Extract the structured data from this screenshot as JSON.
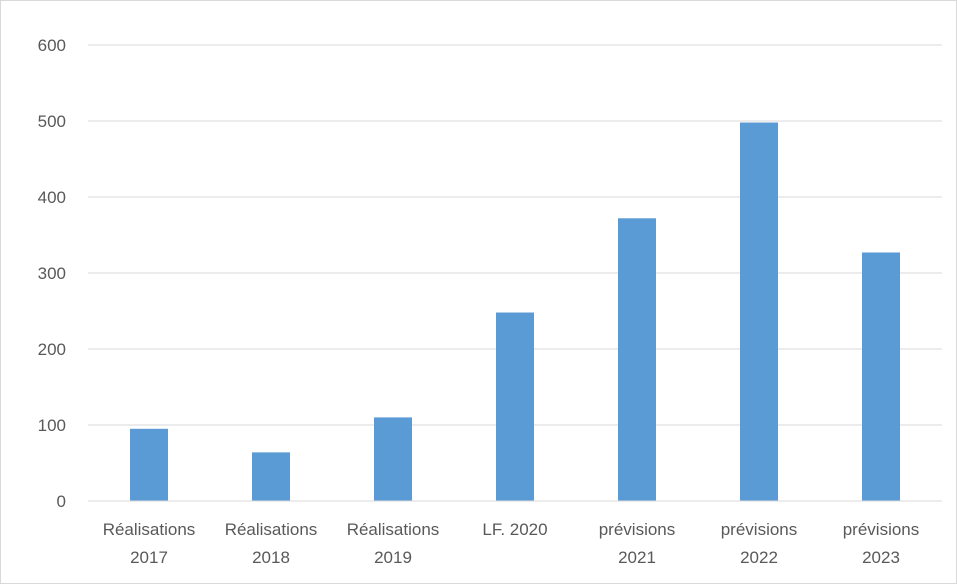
{
  "chart_data": {
    "type": "bar",
    "categories": [
      [
        "Réalisations",
        "2017"
      ],
      [
        "Réalisations",
        "2018"
      ],
      [
        "Réalisations",
        "2019"
      ],
      [
        "LF. 2020"
      ],
      [
        "prévisions",
        "2021"
      ],
      [
        "prévisions",
        "2022"
      ],
      [
        "prévisions",
        "2023"
      ]
    ],
    "values": [
      95,
      64,
      110,
      248,
      372,
      498,
      327
    ],
    "title": "",
    "xlabel": "",
    "ylabel": "",
    "ylim": [
      0,
      600
    ],
    "yticks": [
      0,
      100,
      200,
      300,
      400,
      500,
      600
    ],
    "grid": true,
    "legend": "none",
    "colors": {
      "bar": "#5b9bd5",
      "grid": "#d9d9d9",
      "axis": "#d9d9d9",
      "text": "#595959"
    }
  }
}
